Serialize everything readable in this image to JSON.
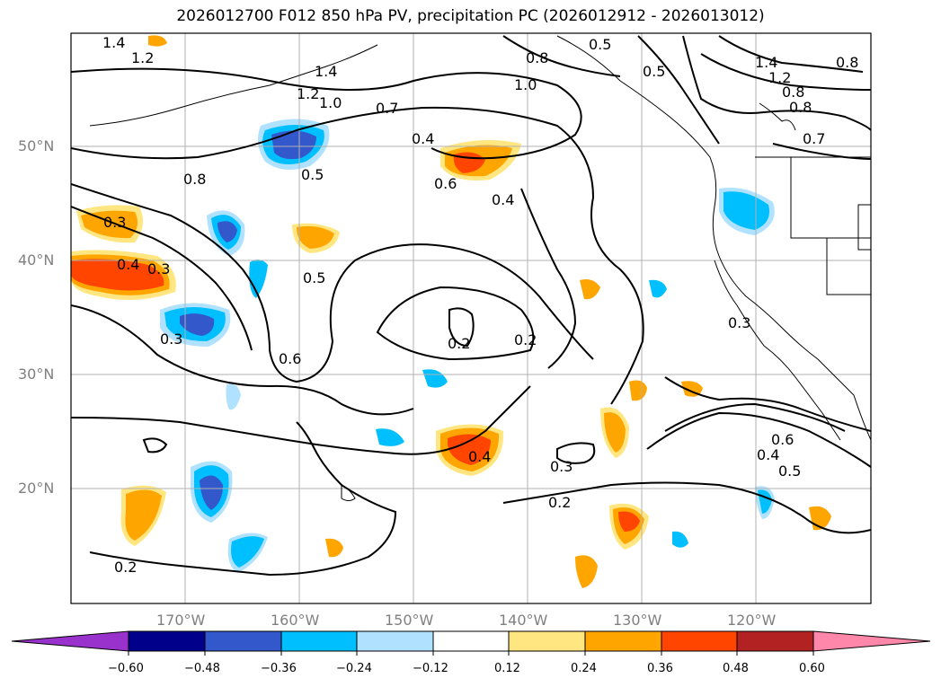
{
  "title": "2026012700 F012 850 hPa PV, precipitation PC (2026012912 - 2026013012)",
  "lat_labels": [
    "50°N",
    "40°N",
    "30°N",
    "20°N"
  ],
  "lon_labels": [
    "170°W",
    "160°W",
    "150°W",
    "140°W",
    "130°W",
    "120°W"
  ],
  "colorbar": {
    "ticks": [
      "−0.60",
      "−0.48",
      "−0.36",
      "−0.24",
      "−0.12",
      "0.12",
      "0.24",
      "0.36",
      "0.48",
      "0.60"
    ],
    "colors": [
      "#9932cc",
      "#00008b",
      "#3358cc",
      "#00bfff",
      "#b0e2ff",
      "#ffffff",
      "#ffe680",
      "#ffa500",
      "#ff4500",
      "#b22222",
      "#ff88aa"
    ]
  },
  "contour_labels": [
    "1.4",
    "1.2",
    "1.4",
    "1.2",
    "1.0",
    "0.7",
    "0.8",
    "1.0",
    "0.8",
    "0.4",
    "0.6",
    "0.4",
    "0.5",
    "0.3",
    "0.4",
    "0.3",
    "0.5",
    "0.3",
    "0.6",
    "0.2",
    "0.2",
    "0.4",
    "0.3",
    "0.2",
    "0.2",
    "0.3",
    "0.4",
    "0.5",
    "0.6",
    "1.4",
    "1.2",
    "0.8",
    "0.8",
    "0.7",
    "0.8",
    "0.5",
    "0.5"
  ],
  "map": {
    "projection": "PlateCarree",
    "lat_range": [
      10,
      60
    ],
    "lon_range": [
      -180,
      -110
    ],
    "grid": true
  }
}
